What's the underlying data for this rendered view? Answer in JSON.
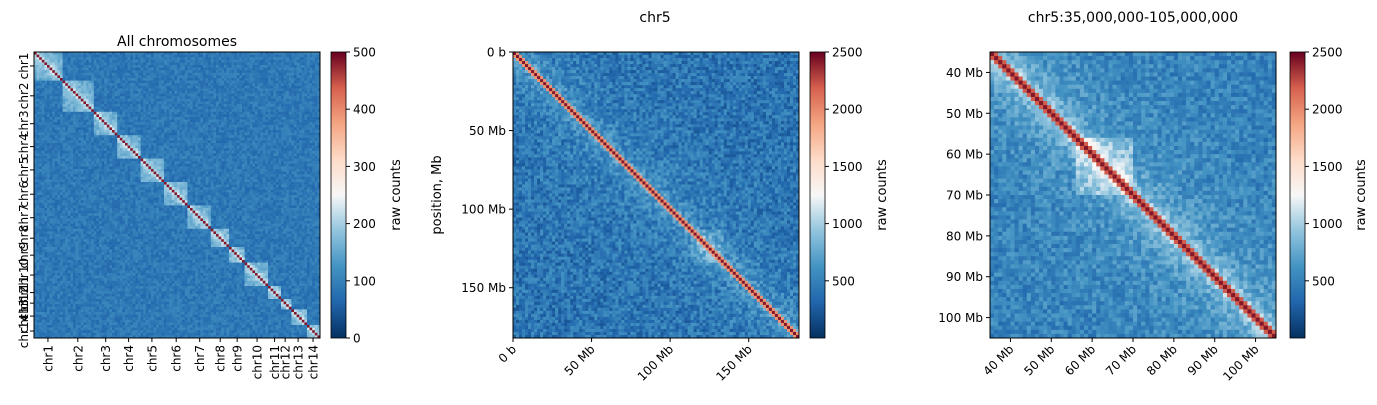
{
  "chart_data": [
    {
      "type": "heatmap",
      "title": "All chromosomes",
      "xlabel": "",
      "ylabel": "",
      "x_tick_labels": [
        "chr1",
        "chr2",
        "chr3",
        "chr4",
        "chr5",
        "chr6",
        "chr7",
        "chr8",
        "chr9",
        "chr10",
        "chr11",
        "chr12",
        "chr13",
        "chr14"
      ],
      "y_tick_labels": [
        "chr1",
        "chr2",
        "chr3",
        "chr4",
        "chr5",
        "chr6",
        "chr7",
        "chr8",
        "chr9",
        "chr10",
        "chr11",
        "chr12",
        "chr13",
        "chr14"
      ],
      "chromosome_sizes_mb": [
        70,
        80,
        60,
        55,
        62,
        60,
        58,
        45,
        40,
        60,
        28,
        25,
        40,
        35
      ],
      "colorbar": {
        "label": "raw counts",
        "range": [
          0,
          500
        ],
        "ticks": [
          "0",
          "100",
          "200",
          "300",
          "400",
          "500"
        ]
      },
      "colormap": "RdBu_r"
    },
    {
      "type": "heatmap",
      "title": "chr5",
      "xlabel": "",
      "ylabel": "position, Mb",
      "x_range_mb": [
        0,
        182
      ],
      "y_range_mb": [
        0,
        182
      ],
      "x_tick_labels": [
        "0 b",
        "50 Mb",
        "100 Mb",
        "150 Mb"
      ],
      "y_tick_labels": [
        "0 b",
        "50 Mb",
        "100 Mb",
        "150 Mb"
      ],
      "tick_values_mb": [
        0,
        50,
        100,
        150
      ],
      "colorbar": {
        "label": "raw counts",
        "range": [
          0,
          2500
        ],
        "ticks": [
          "500",
          "1000",
          "1500",
          "2000",
          "2500"
        ]
      },
      "colormap": "RdBu_r"
    },
    {
      "type": "heatmap",
      "title": "chr5:35,000,000-105,000,000",
      "xlabel": "",
      "ylabel": "",
      "x_range_mb": [
        35,
        105
      ],
      "y_range_mb": [
        35,
        105
      ],
      "x_tick_labels": [
        "40 Mb",
        "50 Mb",
        "60 Mb",
        "70 Mb",
        "80 Mb",
        "90 Mb",
        "100 Mb"
      ],
      "y_tick_labels": [
        "40 Mb",
        "50 Mb",
        "60 Mb",
        "70 Mb",
        "80 Mb",
        "90 Mb",
        "100 Mb"
      ],
      "tick_values_mb": [
        40,
        50,
        60,
        70,
        80,
        90,
        100
      ],
      "colorbar": {
        "label": "raw counts",
        "range": [
          0,
          2500
        ],
        "ticks": [
          "500",
          "1000",
          "1500",
          "2000",
          "2500"
        ]
      },
      "colormap": "RdBu_r"
    }
  ]
}
